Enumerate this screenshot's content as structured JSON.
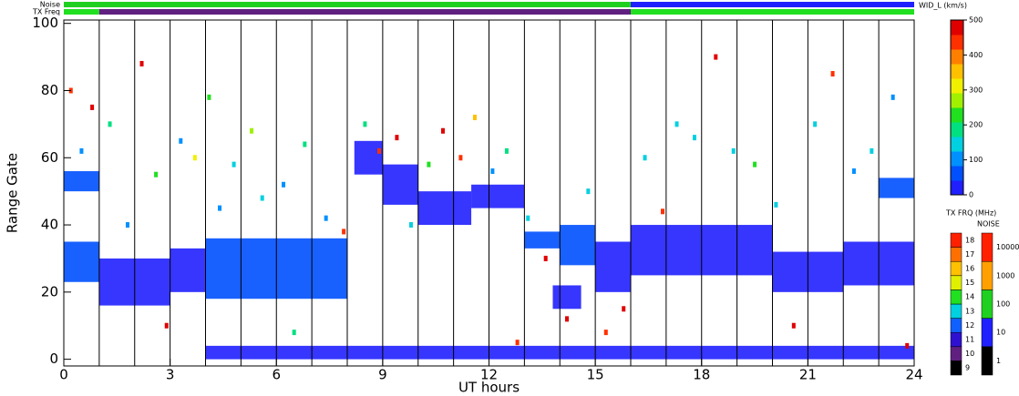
{
  "chart_data": {
    "type": "range-time",
    "xlabel": "UT hours",
    "ylabel": "Range Gate",
    "xlim": [
      0,
      24
    ],
    "xticks": [
      0,
      3,
      6,
      9,
      12,
      15,
      18,
      21,
      24
    ],
    "xgrid": [
      1,
      2,
      3,
      4,
      5,
      6,
      7,
      8,
      9,
      10,
      11,
      12,
      13,
      14,
      15,
      16,
      17,
      18,
      19,
      20,
      21,
      22,
      23
    ],
    "ylim": [
      -2,
      101
    ],
    "yticks": [
      0,
      20,
      40,
      60,
      80,
      100
    ],
    "colorscale": {
      "title": "WID_L (km/s)",
      "range": [
        0,
        500
      ],
      "ticks": [
        0,
        100,
        200,
        300,
        400,
        500
      ],
      "colors": [
        "#2020ff",
        "#0050ff",
        "#0090ff",
        "#00d0e0",
        "#00e080",
        "#20e020",
        "#a0f000",
        "#f0f000",
        "#ffc000",
        "#ff8000",
        "#ff3000",
        "#e00000"
      ]
    },
    "bands": [
      {
        "x": [
          0,
          1
        ],
        "y": [
          23,
          35
        ],
        "value": 50
      },
      {
        "x": [
          0,
          1
        ],
        "y": [
          50,
          56
        ],
        "value": 50
      },
      {
        "x": [
          1,
          3
        ],
        "y": [
          16,
          30
        ],
        "value": 40
      },
      {
        "x": [
          3,
          4
        ],
        "y": [
          20,
          33
        ],
        "value": 40
      },
      {
        "x": [
          4,
          8
        ],
        "y": [
          18,
          36
        ],
        "value": 50
      },
      {
        "x": [
          8.2,
          9
        ],
        "y": [
          55,
          65
        ],
        "value": 40
      },
      {
        "x": [
          9,
          10
        ],
        "y": [
          46,
          58
        ],
        "value": 40
      },
      {
        "x": [
          10,
          11.5
        ],
        "y": [
          40,
          50
        ],
        "value": 40
      },
      {
        "x": [
          11.5,
          13
        ],
        "y": [
          45,
          52
        ],
        "value": 40
      },
      {
        "x": [
          13,
          14
        ],
        "y": [
          33,
          38
        ],
        "value": 50
      },
      {
        "x": [
          14,
          15
        ],
        "y": [
          28,
          40
        ],
        "value": 50
      },
      {
        "x": [
          13.8,
          14.6
        ],
        "y": [
          15,
          22
        ],
        "value": 40
      },
      {
        "x": [
          15,
          16
        ],
        "y": [
          20,
          35
        ],
        "value": 40
      },
      {
        "x": [
          16,
          20
        ],
        "y": [
          25,
          40
        ],
        "value": 40
      },
      {
        "x": [
          20,
          22
        ],
        "y": [
          20,
          32
        ],
        "value": 40
      },
      {
        "x": [
          22,
          24
        ],
        "y": [
          22,
          35
        ],
        "value": 40
      },
      {
        "x": [
          23,
          24
        ],
        "y": [
          48,
          54
        ],
        "value": 50
      },
      {
        "x": [
          4,
          24
        ],
        "y": [
          0,
          4
        ],
        "value": 40
      }
    ],
    "points": {
      "x": [
        0.2,
        0.5,
        0.8,
        1.3,
        1.8,
        2.2,
        2.6,
        3.3,
        3.7,
        4.1,
        4.4,
        4.8,
        5.3,
        5.6,
        6.2,
        6.8,
        7.4,
        7.9,
        8.5,
        8.9,
        9.4,
        9.8,
        10.3,
        10.7,
        11.2,
        11.6,
        12.1,
        12.5,
        13.1,
        13.6,
        14.2,
        14.8,
        15.3,
        15.8,
        16.4,
        16.9,
        17.3,
        17.8,
        18.4,
        18.9,
        19.5,
        20.1,
        20.6,
        21.2,
        21.7,
        22.3,
        22.8,
        23.4,
        23.8,
        2.9,
        6.5,
        12.8
      ],
      "y": [
        80,
        62,
        75,
        70,
        40,
        88,
        55,
        65,
        60,
        78,
        45,
        58,
        68,
        48,
        52,
        64,
        42,
        38,
        70,
        62,
        66,
        40,
        58,
        68,
        60,
        72,
        56,
        62,
        42,
        30,
        12,
        50,
        8,
        15,
        60,
        44,
        70,
        66,
        90,
        62,
        58,
        46,
        10,
        70,
        85,
        56,
        62,
        78,
        4,
        10,
        8,
        5
      ],
      "values": [
        450,
        120,
        460,
        200,
        120,
        470,
        230,
        110,
        300,
        210,
        120,
        160,
        250,
        140,
        110,
        200,
        120,
        450,
        170,
        440,
        460,
        130,
        210,
        470,
        440,
        360,
        120,
        200,
        140,
        460,
        460,
        130,
        450,
        470,
        140,
        450,
        160,
        130,
        460,
        140,
        220,
        130,
        470,
        150,
        450,
        110,
        140,
        120,
        460,
        470,
        190,
        450
      ]
    },
    "noise": {
      "label": "Noise",
      "segments": [
        {
          "x": [
            0,
            16
          ],
          "value": 100
        },
        {
          "x": [
            16,
            24
          ],
          "value": 10
        }
      ]
    },
    "txfreq": {
      "label": "TX Freq",
      "segments": [
        {
          "x": [
            0,
            1
          ],
          "value": 14
        },
        {
          "x": [
            1,
            16
          ],
          "value": 10
        },
        {
          "x": [
            16,
            24
          ],
          "value": 14
        }
      ]
    },
    "freq_scale": {
      "title": "TX FRQ (MHz)",
      "levels": [
        9,
        10,
        11,
        12,
        13,
        14,
        15,
        16,
        17,
        18
      ],
      "colors": [
        "#000000",
        "#602080",
        "#3010d0",
        "#1060ff",
        "#00d0e0",
        "#20e020",
        "#e0f000",
        "#ffc000",
        "#ff7000",
        "#ff2000"
      ]
    },
    "noise_scale": {
      "title": "NOISE",
      "levels": [
        1,
        10,
        100,
        1000,
        10000
      ],
      "colors": [
        "#000000",
        "#2020ff",
        "#20d020",
        "#ffa000",
        "#ff2000"
      ]
    }
  }
}
